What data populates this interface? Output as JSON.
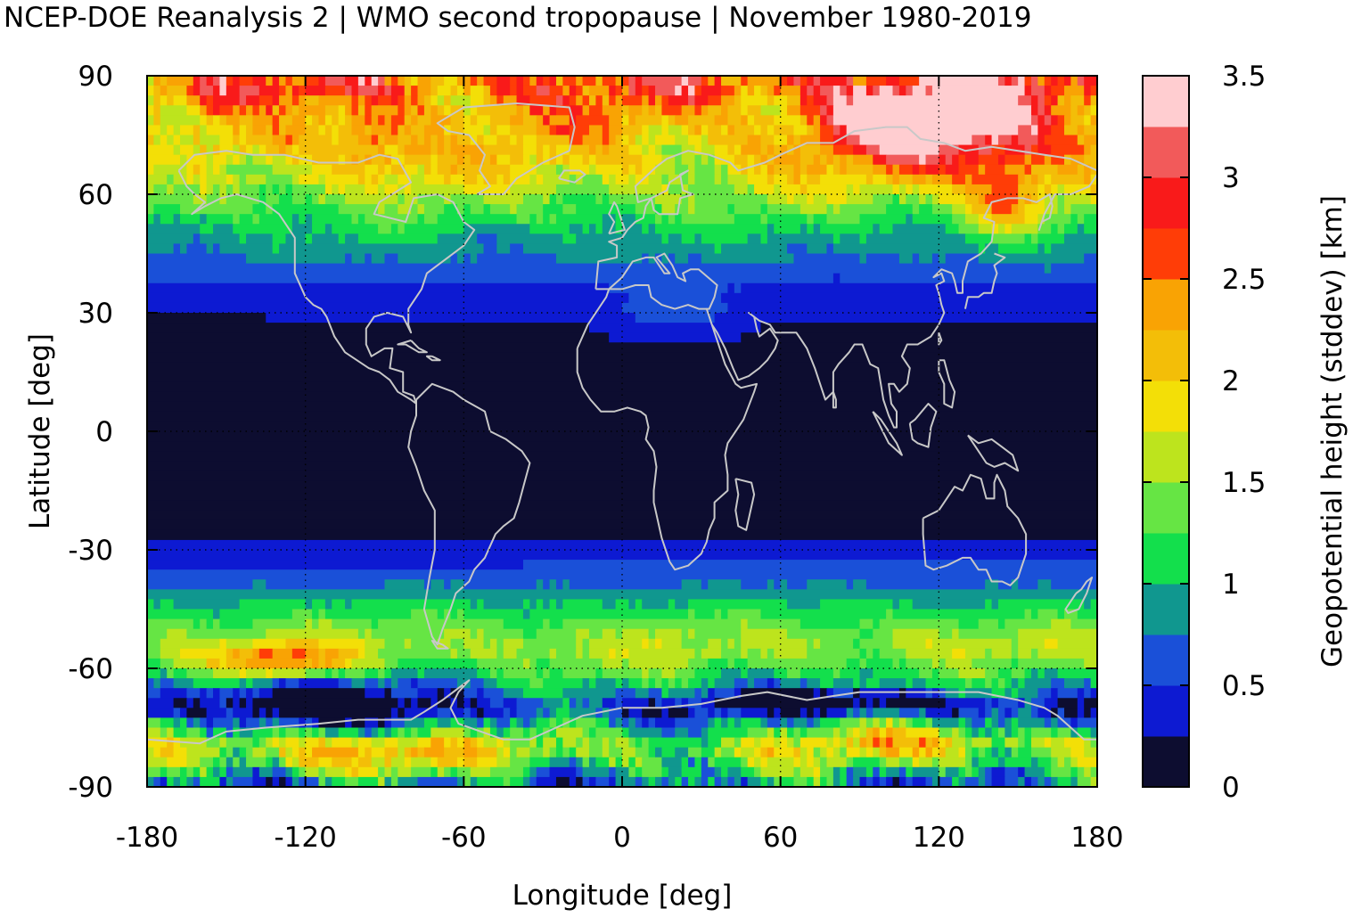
{
  "title": "NCEP-DOE Reanalysis 2 | WMO second tropopause | November 1980-2019",
  "chart_data": {
    "type": "heatmap",
    "title": "NCEP-DOE Reanalysis 2 | WMO second tropopause | November 1980-2019",
    "xlabel": "Longitude [deg]",
    "ylabel": "Latitude [deg]",
    "xlim": [
      -180,
      180
    ],
    "ylim": [
      -90,
      90
    ],
    "x_ticks": [
      "-180",
      "-120",
      "-60",
      "0",
      "60",
      "120",
      "180"
    ],
    "y_ticks": [
      "90",
      "60",
      "30",
      "0",
      "-30",
      "-60",
      "-90"
    ],
    "grid": "dotted, every 60 deg longitude and 30 deg latitude",
    "colorbar": {
      "label": "Geopotential height (stddev) [km]",
      "range": [
        0,
        3.5
      ],
      "tick_labels": [
        "3.5",
        "3",
        "2.5",
        "2",
        "1.5",
        "1",
        "0.5",
        "0"
      ],
      "colors": [
        "#0d0d30",
        "#0d1ad2",
        "#1a50d8",
        "#10978f",
        "#13df4c",
        "#66e544",
        "#bde41d",
        "#f3df07",
        "#f3be08",
        "#f9a304",
        "#ff3d07",
        "#f91a1a",
        "#f25a5a",
        "#ffcdd0"
      ],
      "placement": "right"
    },
    "zonal_pattern": [
      {
        "lat": 87,
        "value": 2.6
      },
      {
        "lat": 80,
        "value": 2.2
      },
      {
        "lat": 72,
        "value": 2.0
      },
      {
        "lat": 65,
        "value": 1.8
      },
      {
        "lat": 60,
        "value": 1.5
      },
      {
        "lat": 55,
        "value": 1.25
      },
      {
        "lat": 50,
        "value": 1.0
      },
      {
        "lat": 45,
        "value": 0.8
      },
      {
        "lat": 40,
        "value": 0.6
      },
      {
        "lat": 35,
        "value": 0.4
      },
      {
        "lat": 30,
        "value": 0.3
      },
      {
        "lat": 25,
        "value": 0.1
      },
      {
        "lat": 0,
        "value": 0.05
      },
      {
        "lat": -25,
        "value": 0.1
      },
      {
        "lat": -30,
        "value": 0.35
      },
      {
        "lat": -35,
        "value": 0.55
      },
      {
        "lat": -40,
        "value": 0.8
      },
      {
        "lat": -45,
        "value": 1.1
      },
      {
        "lat": -50,
        "value": 1.4
      },
      {
        "lat": -55,
        "value": 1.6
      },
      {
        "lat": -60,
        "value": 1.3
      },
      {
        "lat": -65,
        "value": 0.9
      },
      {
        "lat": -70,
        "value": 0.4
      },
      {
        "lat": -75,
        "value": 1.0
      },
      {
        "lat": -80,
        "value": 1.6
      },
      {
        "lat": -85,
        "value": 1.2
      },
      {
        "lat": -89,
        "value": 0.8
      }
    ],
    "coastline_color": "#c8c8c8"
  }
}
